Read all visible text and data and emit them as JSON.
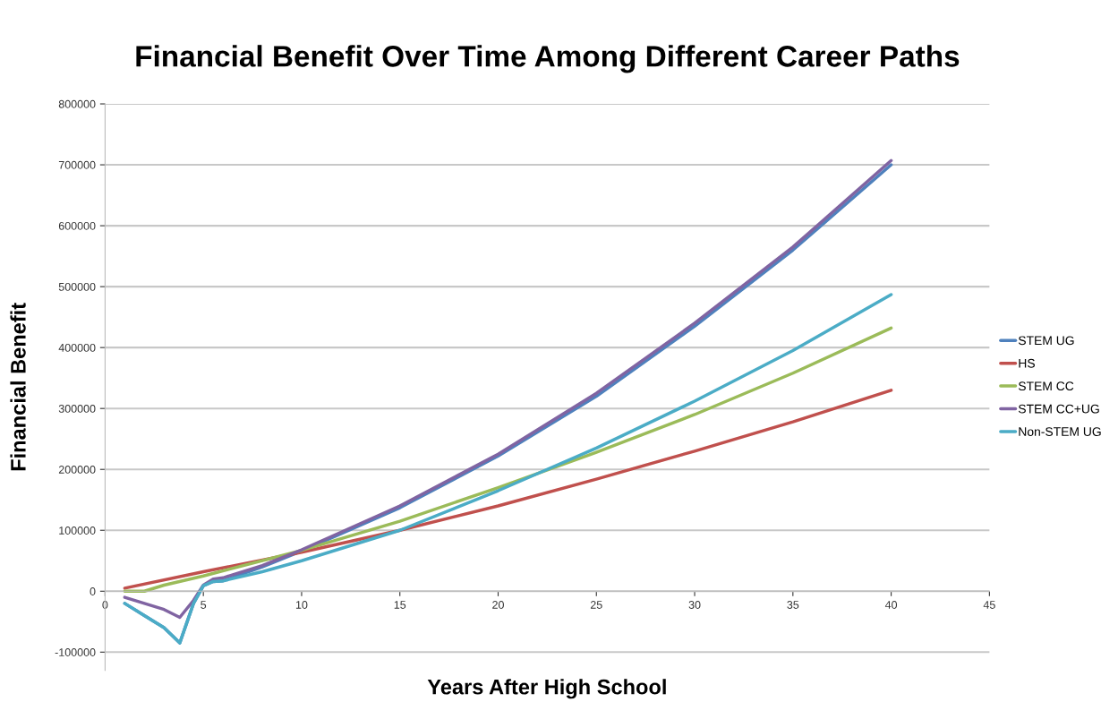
{
  "chart_data": {
    "type": "line",
    "title": "Financial Benefit Over Time Among Different Career Paths",
    "xlabel": "Years After High School",
    "ylabel": "Financial Benefit",
    "xlim": [
      0,
      45
    ],
    "xticks": [
      0,
      5,
      10,
      15,
      20,
      25,
      30,
      35,
      40,
      45
    ],
    "ylim": [
      -130000,
      800000
    ],
    "yticks": [
      -100000,
      0,
      100000,
      200000,
      300000,
      400000,
      500000,
      600000,
      700000,
      800000
    ],
    "grid": "y",
    "legend": "right",
    "marker": "none",
    "line_style": "solid",
    "series": [
      {
        "name": "STEM UG",
        "color": "#4f81bd",
        "x": [
          1,
          2,
          3,
          3.8,
          4.5,
          5,
          5.5,
          6,
          8,
          10,
          15,
          20,
          25,
          30,
          35,
          40
        ],
        "values": [
          -20000,
          -40000,
          -60000,
          -85000,
          -20000,
          9000,
          16000,
          17000,
          40000,
          66000,
          137000,
          222000,
          320000,
          435000,
          560000,
          700000
        ]
      },
      {
        "name": "HS",
        "color": "#c0504d",
        "x": [
          1,
          5,
          10,
          15,
          20,
          25,
          30,
          35,
          40
        ],
        "values": [
          5000,
          32000,
          64000,
          100000,
          140000,
          184000,
          230000,
          278000,
          330000
        ]
      },
      {
        "name": "STEM CC",
        "color": "#9bbb59",
        "x": [
          1,
          2,
          3,
          5,
          10,
          15,
          20,
          25,
          30,
          35,
          40
        ],
        "values": [
          0,
          0,
          10000,
          25000,
          67000,
          115000,
          170000,
          228000,
          290000,
          358000,
          432000
        ]
      },
      {
        "name": "STEM CC+UG",
        "color": "#8064a2",
        "x": [
          1,
          2,
          3,
          3.8,
          4.5,
          5,
          5.5,
          6,
          8,
          10,
          15,
          20,
          25,
          30,
          35,
          40
        ],
        "values": [
          -10000,
          -20000,
          -30000,
          -43000,
          -15000,
          10000,
          20000,
          22000,
          42000,
          68000,
          140000,
          225000,
          325000,
          440000,
          565000,
          707000
        ]
      },
      {
        "name": "Non-STEM UG",
        "color": "#4bacc6",
        "x": [
          1,
          2,
          3,
          3.8,
          4.5,
          5,
          5.5,
          6,
          8,
          10,
          15,
          20,
          25,
          30,
          35,
          40
        ],
        "values": [
          -20000,
          -40000,
          -60000,
          -85000,
          -20000,
          9000,
          16000,
          17000,
          32000,
          50000,
          100000,
          165000,
          235000,
          312000,
          395000,
          487000
        ]
      }
    ]
  }
}
